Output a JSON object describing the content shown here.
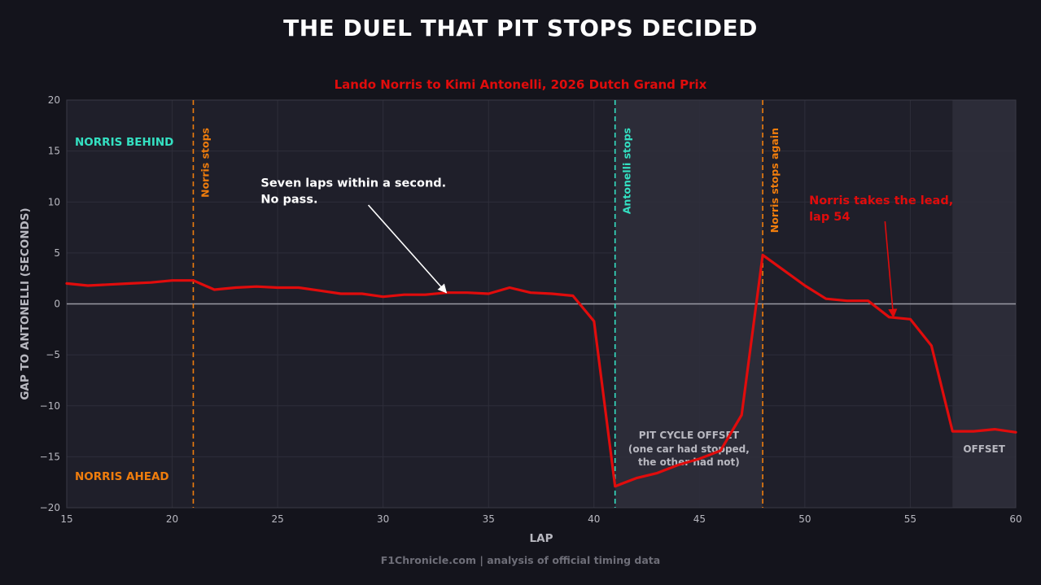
{
  "header": {
    "title": "THE DUEL THAT PIT STOPS DECIDED",
    "subtitle": "Lando Norris to Kimi Antonelli, 2026 Dutch Grand Prix"
  },
  "footer": {
    "source": "F1Chronicle.com  |  analysis of official timing data"
  },
  "colors": {
    "background": "#14141c",
    "plot_background": "#1f1f2a",
    "shaded_band": "#2c2c38",
    "line": "#e00c0c",
    "norris_orange": "#ef7d0d",
    "antonelli_teal": "#34e0c2",
    "zero_line": "#9a9aa4",
    "tick_text": "#b8b8c0"
  },
  "chart_data": {
    "type": "line",
    "xlabel": "LAP",
    "ylabel": "GAP TO ANTONELLI (SECONDS)",
    "xlim": [
      15,
      60
    ],
    "ylim": [
      -20,
      20
    ],
    "xticks": [
      15,
      20,
      25,
      30,
      35,
      40,
      45,
      50,
      55,
      60
    ],
    "yticks": [
      -20,
      -15,
      -10,
      -5,
      0,
      5,
      10,
      15,
      20
    ],
    "grid": true,
    "x": [
      15,
      16,
      17,
      18,
      19,
      20,
      21,
      22,
      23,
      24,
      25,
      26,
      27,
      28,
      29,
      30,
      31,
      32,
      33,
      34,
      35,
      36,
      37,
      38,
      39,
      40,
      41,
      42,
      43,
      44,
      45,
      46,
      47,
      48,
      49,
      50,
      51,
      52,
      53,
      54,
      55,
      56,
      57,
      58,
      59,
      60
    ],
    "series": [
      {
        "values": [
          2.0,
          1.8,
          1.9,
          2.0,
          2.1,
          2.3,
          2.3,
          1.4,
          1.6,
          1.7,
          1.6,
          1.6,
          1.3,
          1.0,
          1.0,
          0.7,
          0.9,
          0.9,
          1.1,
          1.1,
          1.0,
          1.6,
          1.1,
          1.0,
          0.8,
          -1.7,
          -17.9,
          -17.1,
          -16.6,
          -15.8,
          -15.2,
          -14.4,
          -10.9,
          4.8,
          3.3,
          1.8,
          0.5,
          0.3,
          0.3,
          -1.3,
          -1.5,
          -4.1,
          -12.5,
          -12.5,
          -12.3,
          -12.6
        ]
      }
    ],
    "shaded_regions": [
      {
        "x_start": 41,
        "x_end": 48,
        "label": "PIT CYCLE OFFSET",
        "sublabel_1": "(one car had stopped,",
        "sublabel_2": "the other had not)"
      },
      {
        "x_start": 57,
        "x_end": 60,
        "label": "OFFSET"
      }
    ],
    "vertical_lines": [
      {
        "x": 21,
        "label": "Norris stops",
        "color": "#ef7d0d"
      },
      {
        "x": 41,
        "label": "Antonelli stops",
        "color": "#34e0c2"
      },
      {
        "x": 48,
        "label": "Norris stops again",
        "color": "#ef7d0d"
      }
    ],
    "zone_labels": {
      "top": "NORRIS BEHIND",
      "bottom": "NORRIS AHEAD"
    },
    "annotations": [
      {
        "line1": "Seven laps within a second.",
        "line2": "No pass.",
        "color": "#ffffff",
        "text_at": [
          24.2,
          11.5
        ],
        "arrow_from": [
          29.3,
          9.7
        ],
        "arrow_to": [
          33,
          1.1
        ]
      },
      {
        "line1": "Norris takes the lead,",
        "line2": "lap 54",
        "color": "#e00c0c",
        "text_at": [
          50.2,
          9.8
        ],
        "arrow_from": [
          53.8,
          8.1
        ],
        "arrow_to": [
          54.2,
          -1.3
        ]
      }
    ]
  }
}
